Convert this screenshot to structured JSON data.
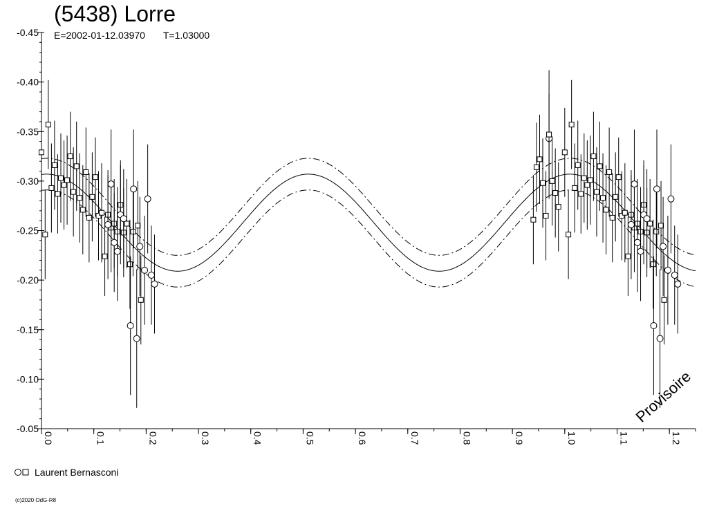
{
  "header": {
    "title": "(5438) Lorre",
    "epoch": "E=2002-01-12.03970",
    "period": "T=1.03000"
  },
  "legend": {
    "observer": "Laurent Bernasconi"
  },
  "footer": {
    "copyright": "(c)2020 OdG-R8"
  },
  "watermark": "Provisoire",
  "chart_data": {
    "type": "scatter",
    "title": "(5438) Lorre",
    "xlim": [
      0.0,
      1.25
    ],
    "ylim": [
      -0.45,
      -0.05
    ],
    "y_inverted": true,
    "grid": false,
    "xticks": [
      0.0,
      0.1,
      0.2,
      0.3,
      0.4,
      0.5,
      0.6,
      0.7,
      0.8,
      0.9,
      1.0,
      1.1,
      1.2
    ],
    "xtick_labels": [
      "0.0",
      "0.1",
      "0.2",
      "0.3",
      "0.4",
      "0.5",
      "0.6",
      "0.7",
      "0.8",
      "0.9",
      "1.0",
      "1.1",
      "1.2"
    ],
    "yticks": [
      -0.45,
      -0.4,
      -0.35,
      -0.3,
      -0.25,
      -0.2,
      -0.15,
      -0.1,
      -0.05
    ],
    "ytick_labels": [
      "-0.45",
      "-0.40",
      "-0.35",
      "-0.30",
      "-0.25",
      "-0.20",
      "-0.15",
      "-0.10",
      "-0.05"
    ],
    "fit": {
      "phase_of_max": 0.01,
      "mean": -0.258,
      "amplitude": 0.049,
      "envelope": 0.016
    },
    "series": [
      {
        "name": "Laurent Bernasconi",
        "marker": "square",
        "points": [
          {
            "x": 0.0,
            "y": -0.329,
            "err": 0.045
          },
          {
            "x": 0.007,
            "y": -0.246,
            "err": 0.045
          },
          {
            "x": 0.013,
            "y": -0.357,
            "err": 0.045
          },
          {
            "x": 0.019,
            "y": -0.293,
            "err": 0.045
          },
          {
            "x": 0.025,
            "y": -0.316,
            "err": 0.045
          },
          {
            "x": 0.031,
            "y": -0.287,
            "err": 0.04
          },
          {
            "x": 0.037,
            "y": -0.303,
            "err": 0.045
          },
          {
            "x": 0.043,
            "y": -0.296,
            "err": 0.045
          },
          {
            "x": 0.049,
            "y": -0.301,
            "err": 0.045
          },
          {
            "x": 0.055,
            "y": -0.325,
            "err": 0.045
          },
          {
            "x": 0.061,
            "y": -0.289,
            "err": 0.045
          },
          {
            "x": 0.067,
            "y": -0.315,
            "err": 0.045
          },
          {
            "x": 0.073,
            "y": -0.283,
            "err": 0.045
          },
          {
            "x": 0.079,
            "y": -0.271,
            "err": 0.045
          },
          {
            "x": 0.085,
            "y": -0.309,
            "err": 0.045
          },
          {
            "x": 0.091,
            "y": -0.263,
            "err": 0.045
          },
          {
            "x": 0.097,
            "y": -0.284,
            "err": 0.045
          },
          {
            "x": 0.103,
            "y": -0.304,
            "err": 0.04
          },
          {
            "x": 0.109,
            "y": -0.265,
            "err": 0.045
          },
          {
            "x": 0.115,
            "y": -0.268,
            "err": 0.05
          },
          {
            "x": 0.121,
            "y": -0.224,
            "err": 0.04
          },
          {
            "x": 0.127,
            "y": -0.266,
            "err": 0.04
          },
          {
            "x": 0.133,
            "y": -0.253,
            "err": 0.045
          },
          {
            "x": 0.139,
            "y": -0.257,
            "err": 0.045
          },
          {
            "x": 0.145,
            "y": -0.249,
            "err": 0.045
          },
          {
            "x": 0.151,
            "y": -0.276,
            "err": 0.045
          },
          {
            "x": 0.157,
            "y": -0.248,
            "err": 0.045
          },
          {
            "x": 0.163,
            "y": -0.257,
            "err": 0.045
          },
          {
            "x": 0.169,
            "y": -0.216,
            "err": 0.045
          },
          {
            "x": 0.175,
            "y": -0.249,
            "err": 0.045
          },
          {
            "x": 0.184,
            "y": -0.255,
            "err": 0.045
          },
          {
            "x": 0.19,
            "y": -0.18,
            "err": 0.045
          }
        ]
      },
      {
        "name": "Laurent Bernasconi",
        "marker": "circle",
        "points": [
          {
            "x": 0.127,
            "y": -0.256,
            "err": 0.055
          },
          {
            "x": 0.133,
            "y": -0.297,
            "err": 0.055
          },
          {
            "x": 0.139,
            "y": -0.238,
            "err": 0.05
          },
          {
            "x": 0.145,
            "y": -0.229,
            "err": 0.05
          },
          {
            "x": 0.151,
            "y": -0.266,
            "err": 0.05
          },
          {
            "x": 0.157,
            "y": -0.262,
            "err": 0.05
          },
          {
            "x": 0.17,
            "y": -0.154,
            "err": 0.07
          },
          {
            "x": 0.176,
            "y": -0.292,
            "err": 0.06
          },
          {
            "x": 0.182,
            "y": -0.141,
            "err": 0.07
          },
          {
            "x": 0.188,
            "y": -0.234,
            "err": 0.05
          },
          {
            "x": 0.197,
            "y": -0.21,
            "err": 0.055
          },
          {
            "x": 0.203,
            "y": -0.282,
            "err": 0.055
          },
          {
            "x": 0.21,
            "y": -0.205,
            "err": 0.05
          },
          {
            "x": 0.216,
            "y": -0.196,
            "err": 0.05
          },
          {
            "x": 0.97,
            "y": -0.343,
            "err": 0.045
          }
        ]
      },
      {
        "name": "Laurent Bernasconi",
        "marker": "square",
        "points": [
          {
            "x": 0.94,
            "y": -0.261,
            "err": 0.045
          },
          {
            "x": 0.946,
            "y": -0.314,
            "err": 0.045
          },
          {
            "x": 0.952,
            "y": -0.322,
            "err": 0.045
          },
          {
            "x": 0.958,
            "y": -0.298,
            "err": 0.045
          },
          {
            "x": 0.964,
            "y": -0.265,
            "err": 0.045
          },
          {
            "x": 0.97,
            "y": -0.347,
            "err": 0.065
          },
          {
            "x": 0.976,
            "y": -0.3,
            "err": 0.045
          },
          {
            "x": 0.982,
            "y": -0.288,
            "err": 0.045
          },
          {
            "x": 0.988,
            "y": -0.274,
            "err": 0.045
          }
        ]
      }
    ]
  }
}
